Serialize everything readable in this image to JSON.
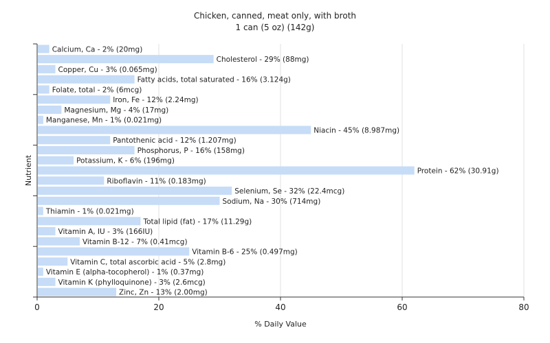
{
  "chart_data": {
    "type": "bar",
    "orientation": "horizontal",
    "title": "Chicken, canned, meat only, with broth",
    "subtitle": "1 can (5 oz) (142g)",
    "xlabel": "% Daily Value",
    "ylabel": "Nutrient",
    "xlim": [
      0,
      80
    ],
    "xticks": [
      0,
      20,
      40,
      60,
      80
    ],
    "grid": true,
    "bar_color": "#c6dcf7",
    "categories": [
      "Calcium, Ca - 2% (20mg)",
      "Cholesterol - 29% (88mg)",
      "Copper, Cu - 3% (0.065mg)",
      "Fatty acids, total saturated - 16% (3.124g)",
      "Folate, total - 2% (6mcg)",
      "Iron, Fe - 12% (2.24mg)",
      "Magnesium, Mg - 4% (17mg)",
      "Manganese, Mn - 1% (0.021mg)",
      "Niacin - 45% (8.987mg)",
      "Pantothenic acid - 12% (1.207mg)",
      "Phosphorus, P - 16% (158mg)",
      "Potassium, K - 6% (196mg)",
      "Protein - 62% (30.91g)",
      "Riboflavin - 11% (0.183mg)",
      "Selenium, Se - 32% (22.4mcg)",
      "Sodium, Na - 30% (714mg)",
      "Thiamin - 1% (0.021mg)",
      "Total lipid (fat) - 17% (11.29g)",
      "Vitamin A, IU - 3% (166IU)",
      "Vitamin B-12 - 7% (0.41mcg)",
      "Vitamin B-6 - 25% (0.497mg)",
      "Vitamin C, total ascorbic acid - 5% (2.8mg)",
      "Vitamin E (alpha-tocopherol) - 1% (0.37mg)",
      "Vitamin K (phylloquinone) - 3% (2.6mcg)",
      "Zinc, Zn - 13% (2.00mg)"
    ],
    "values": [
      2,
      29,
      3,
      16,
      2,
      12,
      4,
      1,
      45,
      12,
      16,
      6,
      62,
      11,
      32,
      30,
      1,
      17,
      3,
      7,
      25,
      5,
      1,
      3,
      13
    ]
  }
}
